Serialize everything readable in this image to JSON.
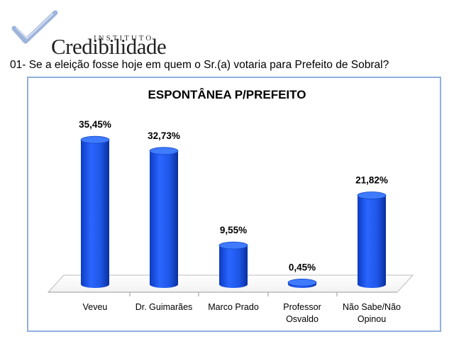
{
  "logo": {
    "sub": "INSTITUTO",
    "main": "Credibilidade",
    "brand_color": "#3a63b0"
  },
  "question": "01- Se a eleição fosse hoje em quem o Sr.(a) votaria para Prefeito de Sobral?",
  "chart_data": {
    "type": "bar",
    "title": "ESPONTÂNEA P/PREFEITO",
    "categories": [
      [
        "Veveu"
      ],
      [
        "Dr. Guimarães"
      ],
      [
        "Marco Prado"
      ],
      [
        "Professor",
        "Osvaldo"
      ],
      [
        "Não Sabe/Não",
        "Opinou"
      ]
    ],
    "values": [
      35.45,
      32.73,
      9.55,
      0.45,
      21.82
    ],
    "value_labels": [
      "35,45%",
      "32,73%",
      "9,55%",
      "0,45%",
      "21,82%"
    ],
    "ylim": [
      0,
      40
    ],
    "bar_color": "#1e56e6",
    "grid": false,
    "legend": "none"
  }
}
